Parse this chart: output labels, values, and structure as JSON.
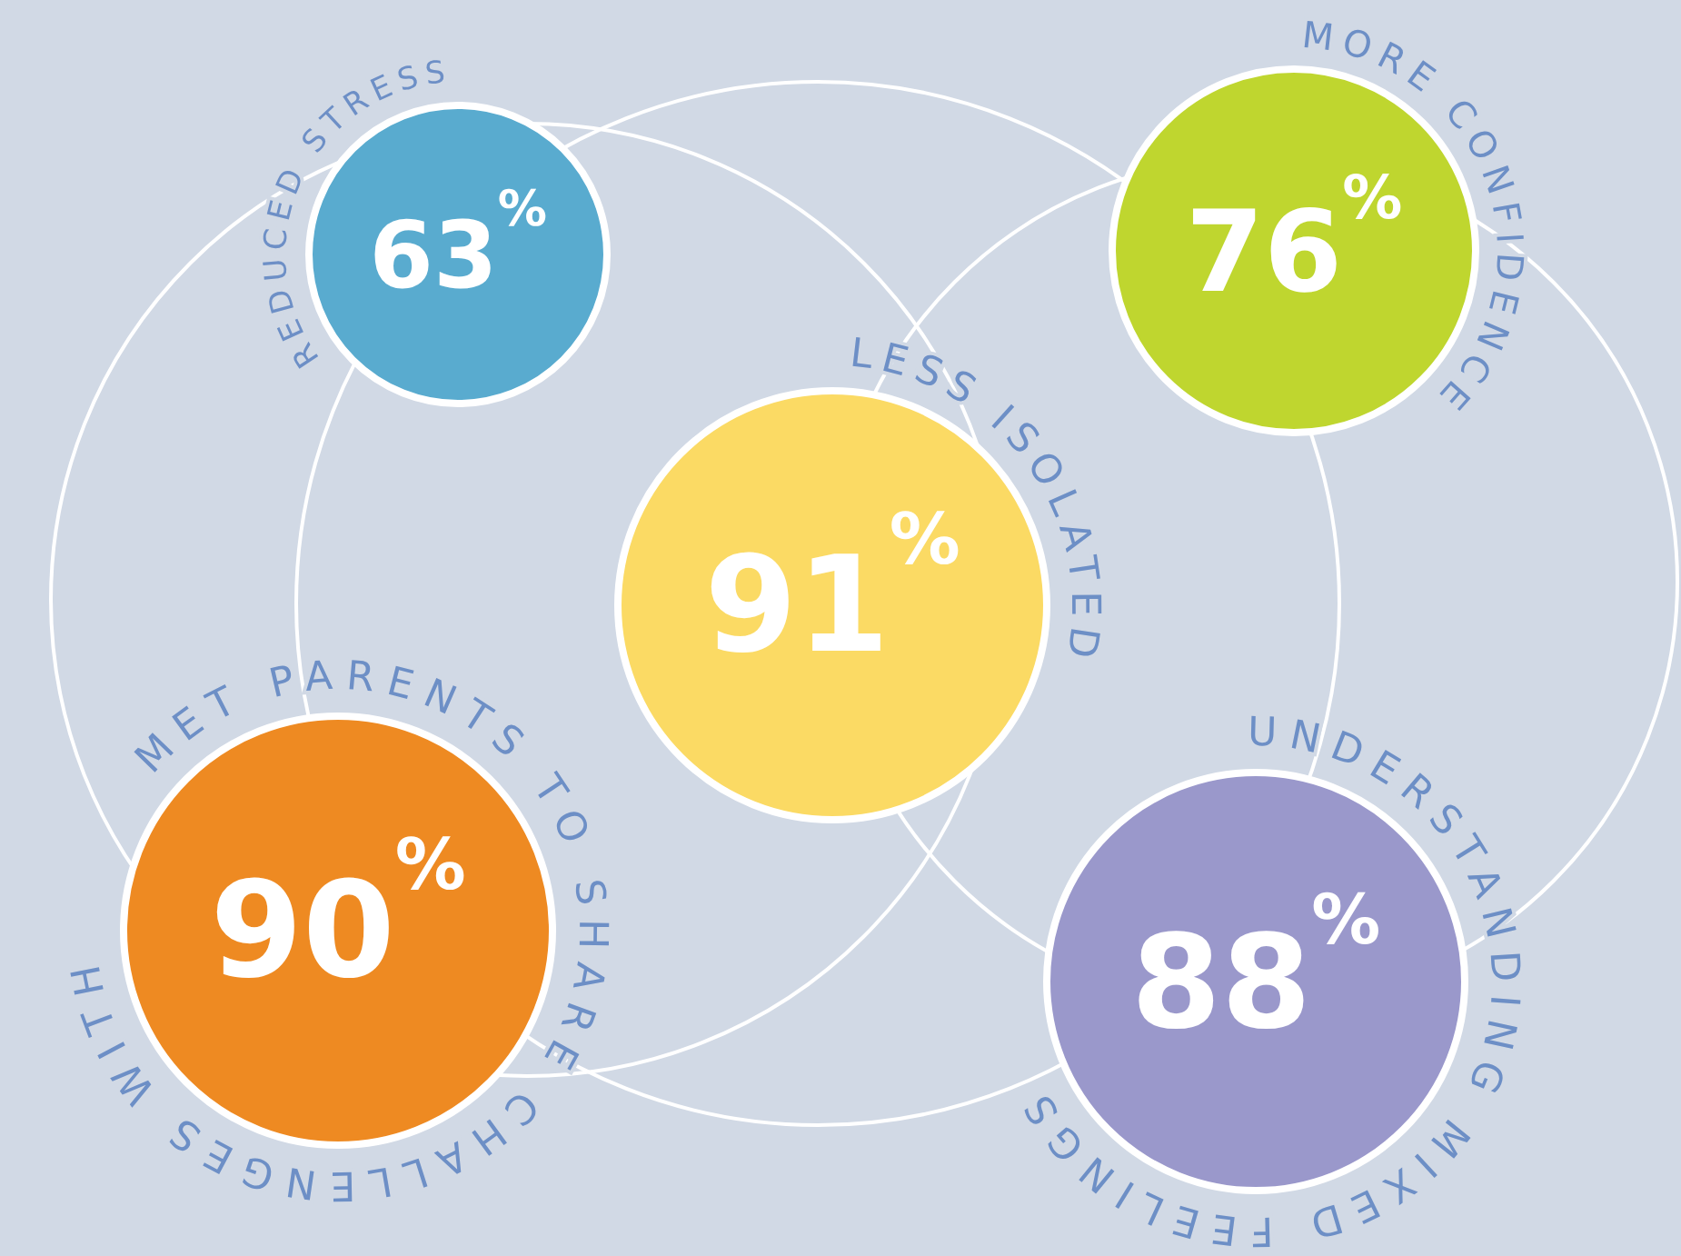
{
  "chart_data": {
    "type": "other",
    "categories": [
      "REDUCED STRESS",
      "MORE CONFIDENCE",
      "LESS ISOLATED",
      "MET PARENTS TO SHARE CHALLENGES WITH",
      "UNDERSTANDING MIXED FEELINGS"
    ],
    "values": [
      63,
      76,
      91,
      90,
      88
    ],
    "value_labels": [
      "63$^{%}$",
      "76$^{%}$",
      "91$^{%}$",
      "90$^{%}$",
      "88$^{%}$"
    ],
    "colors": [
      "#59abcf",
      "#bfd62f",
      "#fbda64",
      "#ee8a22",
      "#9a98cb"
    ]
  }
}
